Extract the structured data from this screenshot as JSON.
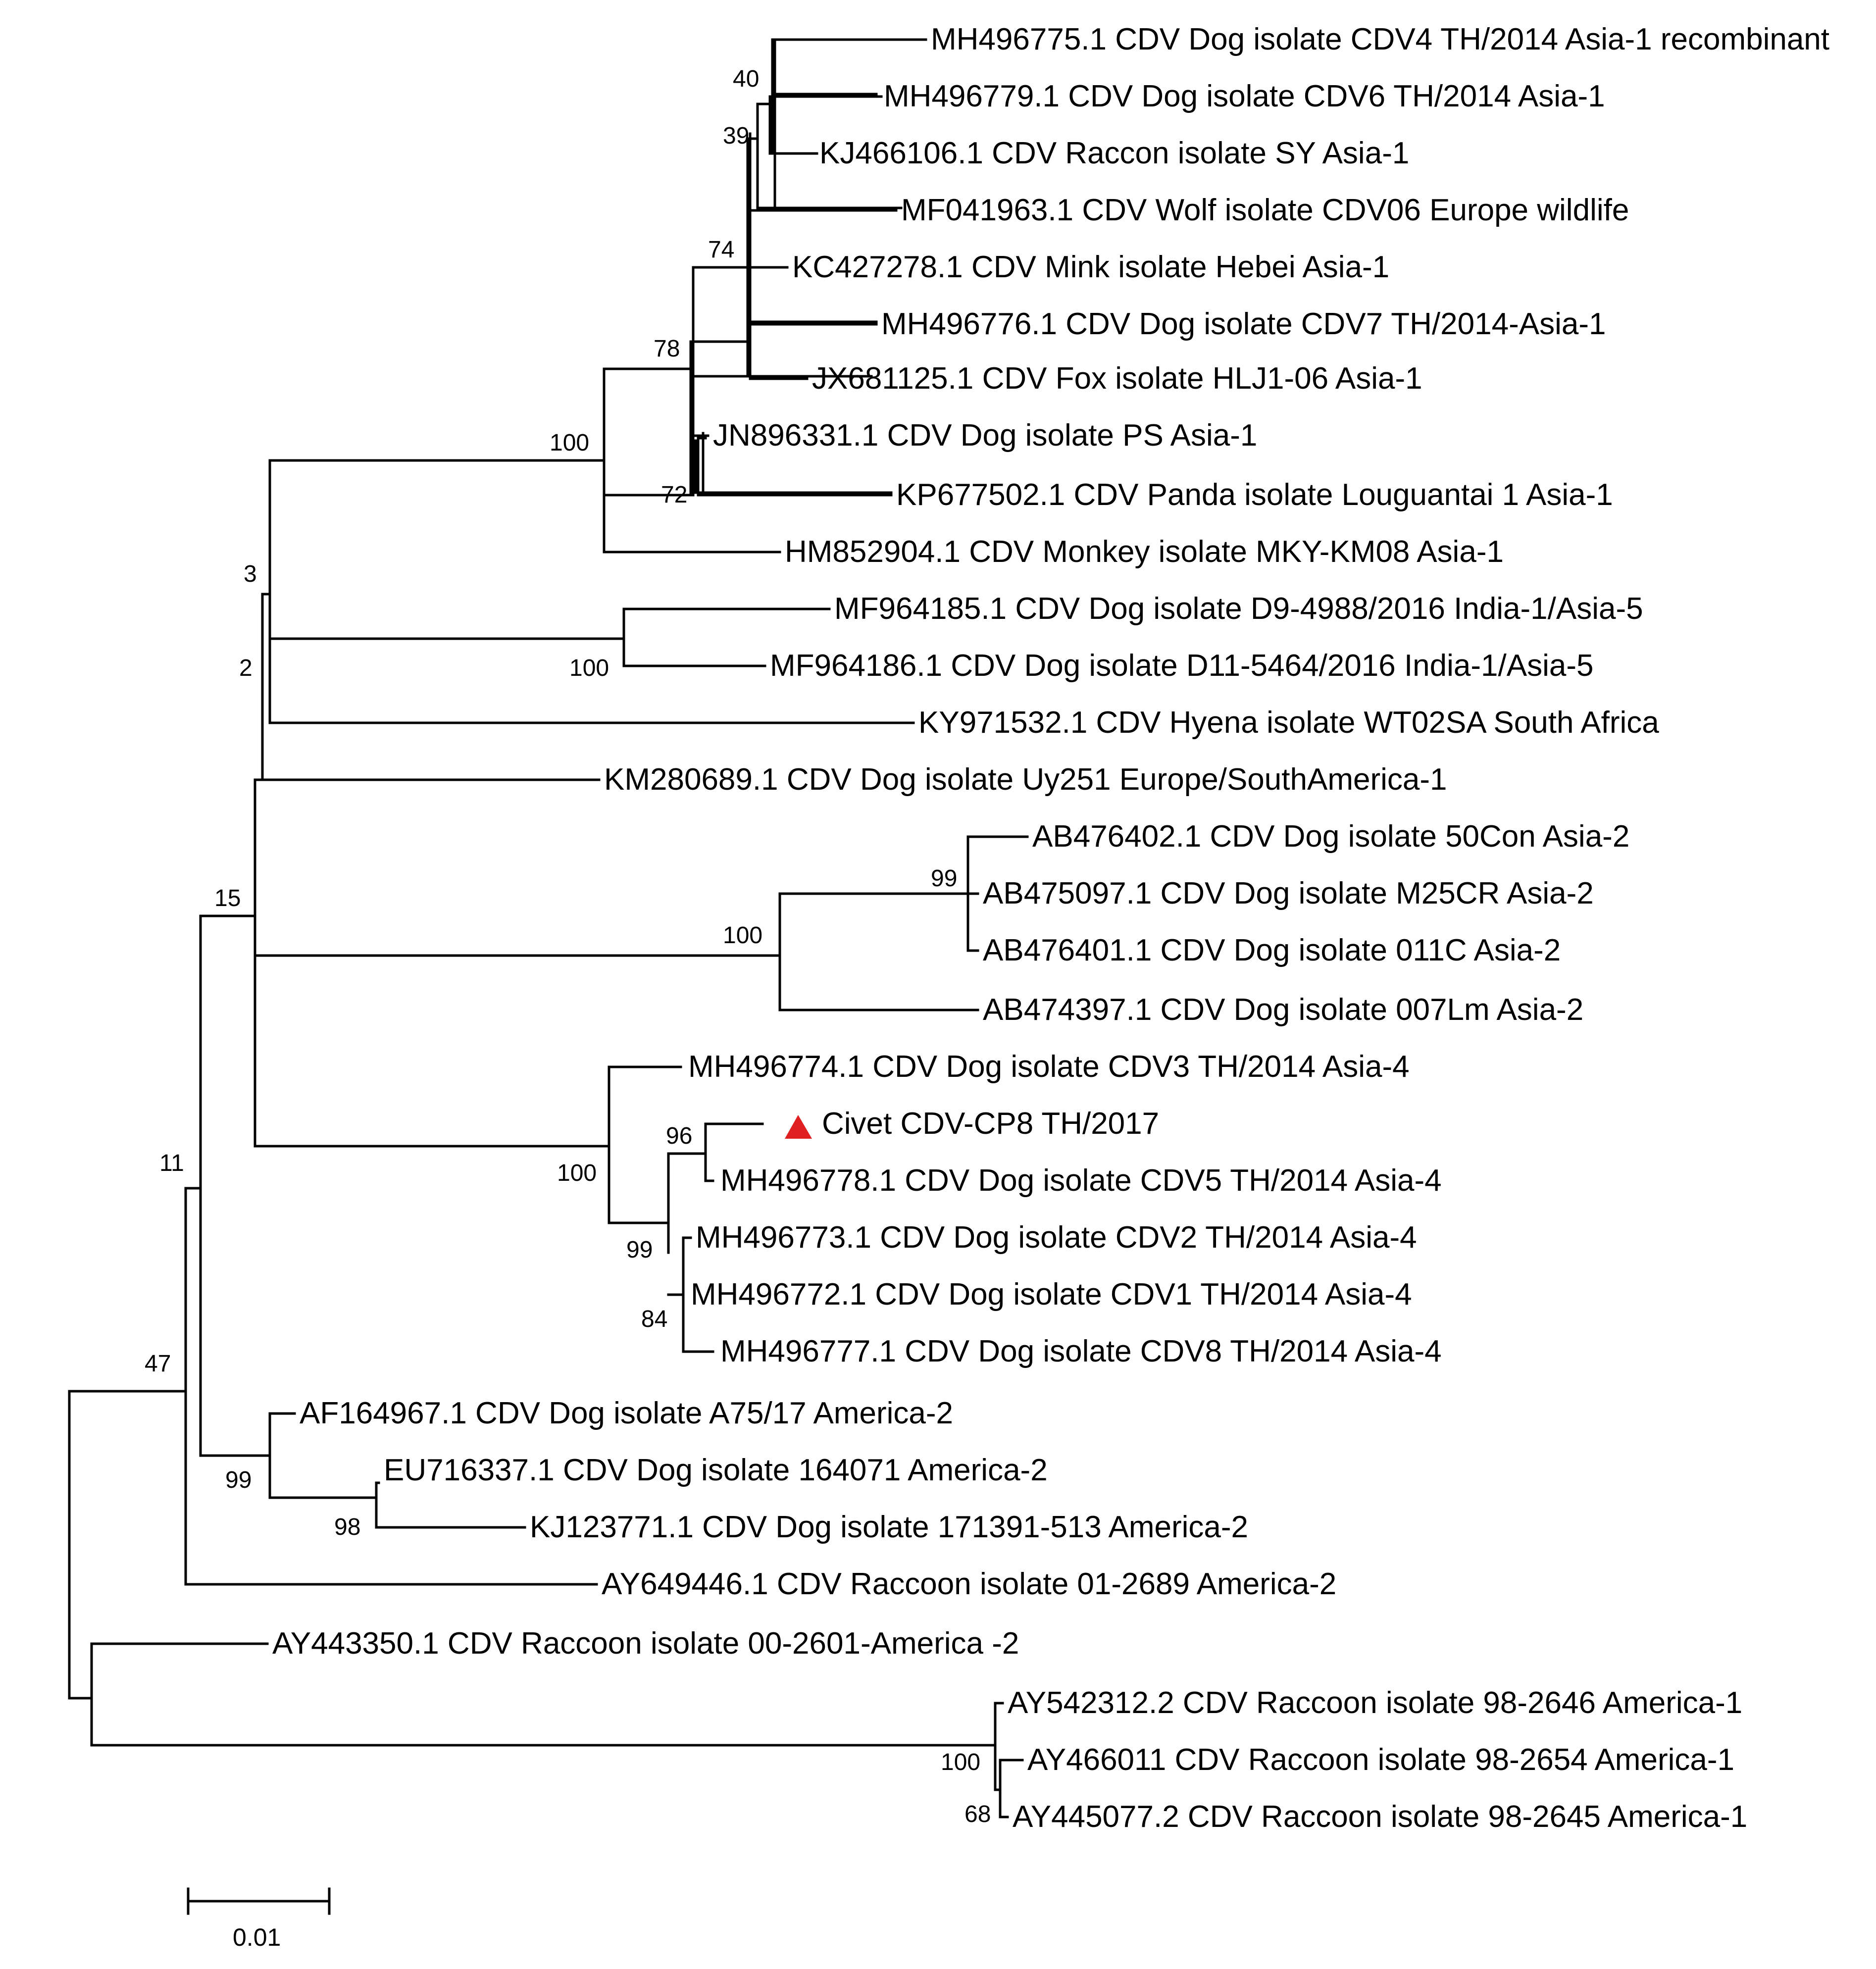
{
  "figure": {
    "type": "phylogenetic_tree",
    "marker_color": "#e02020",
    "scale_bar_label": "0.01"
  },
  "taxa": [
    {
      "id": "t1",
      "label": "MH496775.1 CDV Dog isolate CDV4 TH/2014 Asia-1 recombinant"
    },
    {
      "id": "t2",
      "label": "MH496779.1 CDV Dog isolate CDV6 TH/2014 Asia-1"
    },
    {
      "id": "t3",
      "label": "KJ466106.1 CDV Raccon isolate SY Asia-1"
    },
    {
      "id": "t4",
      "label": "MF041963.1 CDV Wolf isolate CDV06 Europe wildlife"
    },
    {
      "id": "t5",
      "label": "KC427278.1 CDV Mink isolate Hebei Asia-1"
    },
    {
      "id": "t6",
      "label": "MH496776.1 CDV Dog isolate CDV7 TH/2014-Asia-1"
    },
    {
      "id": "t7",
      "label": "JX681125.1 CDV Fox isolate HLJ1-06 Asia-1"
    },
    {
      "id": "t8",
      "label": "JN896331.1 CDV Dog isolate PS Asia-1"
    },
    {
      "id": "t9",
      "label": "KP677502.1 CDV Panda isolate Louguantai 1 Asia-1"
    },
    {
      "id": "t10",
      "label": "HM852904.1 CDV Monkey isolate MKY-KM08 Asia-1"
    },
    {
      "id": "t11",
      "label": "MF964185.1 CDV Dog isolate D9-4988/2016 India-1/Asia-5"
    },
    {
      "id": "t12",
      "label": "MF964186.1 CDV Dog isolate D11-5464/2016 India-1/Asia-5"
    },
    {
      "id": "t13",
      "label": "KY971532.1 CDV Hyena isolate WT02SA South Africa"
    },
    {
      "id": "t14",
      "label": "KM280689.1 CDV Dog isolate Uy251 Europe/SouthAmerica-1"
    },
    {
      "id": "t15",
      "label": "AB476402.1 CDV Dog isolate 50Con Asia-2"
    },
    {
      "id": "t16",
      "label": "AB475097.1 CDV Dog isolate M25CR Asia-2"
    },
    {
      "id": "t17",
      "label": "AB476401.1 CDV Dog isolate 011C Asia-2"
    },
    {
      "id": "t18",
      "label": "AB474397.1 CDV Dog isolate 007Lm Asia-2"
    },
    {
      "id": "t19",
      "label": "MH496774.1 CDV Dog isolate CDV3 TH/2014 Asia-4"
    },
    {
      "id": "t20",
      "label": "Civet CDV-CP8 TH/2017",
      "marker": "red-triangle"
    },
    {
      "id": "t21",
      "label": "MH496778.1 CDV Dog isolate CDV5 TH/2014 Asia-4"
    },
    {
      "id": "t22",
      "label": "MH496773.1 CDV Dog isolate CDV2 TH/2014 Asia-4"
    },
    {
      "id": "t23",
      "label": "MH496772.1 CDV Dog isolate CDV1 TH/2014 Asia-4"
    },
    {
      "id": "t24",
      "label": "MH496777.1 CDV Dog isolate CDV8 TH/2014 Asia-4"
    },
    {
      "id": "t25",
      "label": "AF164967.1 CDV Dog isolate A75/17 America-2"
    },
    {
      "id": "t26",
      "label": "EU716337.1 CDV Dog isolate 164071 America-2"
    },
    {
      "id": "t27",
      "label": "KJ123771.1 CDV Dog isolate 171391-513 America-2"
    },
    {
      "id": "t28",
      "label": "AY649446.1 CDV Raccoon isolate 01-2689 America-2"
    },
    {
      "id": "t29",
      "label": "AY443350.1 CDV Raccoon isolate 00-2601-America -2"
    },
    {
      "id": "t30",
      "label": "AY542312.2 CDV Raccoon isolate 98-2646 America-1"
    },
    {
      "id": "t31",
      "label": "AY466011 CDV Raccoon isolate 98-2654 America-1"
    },
    {
      "id": "t32",
      "label": "AY445077.2 CDV Raccoon isolate 98-2645 America-1"
    }
  ],
  "bootstrap_values": [
    {
      "node": "n_40",
      "value": "40"
    },
    {
      "node": "n_39",
      "value": "39"
    },
    {
      "node": "n_74",
      "value": "74"
    },
    {
      "node": "n_78",
      "value": "78"
    },
    {
      "node": "n_72",
      "value": "72"
    },
    {
      "node": "n_100a",
      "value": "100"
    },
    {
      "node": "n_3",
      "value": "3"
    },
    {
      "node": "n_100b",
      "value": "100"
    },
    {
      "node": "n_2",
      "value": "2"
    },
    {
      "node": "n_99a",
      "value": "99"
    },
    {
      "node": "n_100c",
      "value": "100"
    },
    {
      "node": "n_15",
      "value": "15"
    },
    {
      "node": "n_96",
      "value": "96"
    },
    {
      "node": "n_100d",
      "value": "100"
    },
    {
      "node": "n_99b",
      "value": "99"
    },
    {
      "node": "n_84",
      "value": "84"
    },
    {
      "node": "n_11",
      "value": "11"
    },
    {
      "node": "n_47",
      "value": "47"
    },
    {
      "node": "n_99c",
      "value": "99"
    },
    {
      "node": "n_98",
      "value": "98"
    },
    {
      "node": "n_100e",
      "value": "100"
    },
    {
      "node": "n_68",
      "value": "68"
    }
  ]
}
